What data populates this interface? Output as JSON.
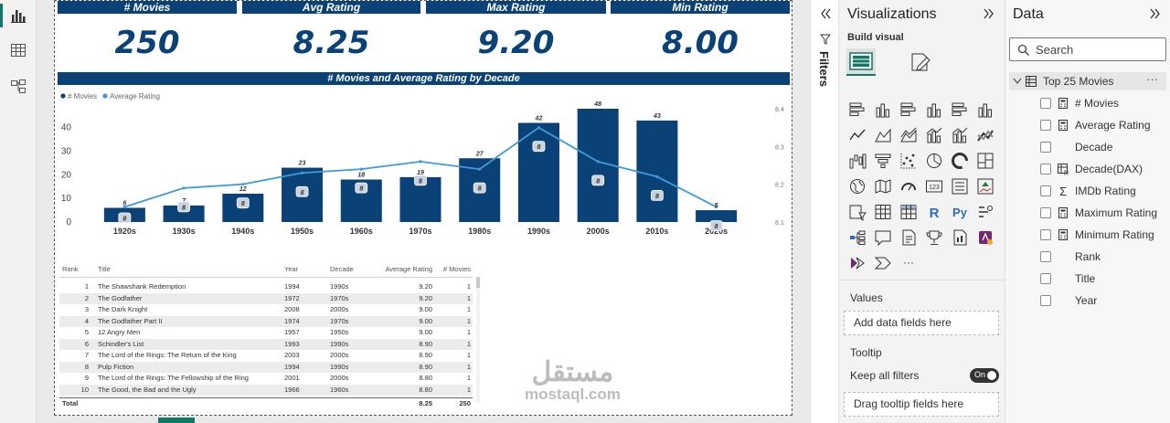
{
  "cards": [
    {
      "label": "# Movies",
      "value": "250"
    },
    {
      "label": "Avg Rating",
      "value": "8.25"
    },
    {
      "label": "Max Rating",
      "value": "9.20"
    },
    {
      "label": "Min Rating",
      "value": "8.00"
    }
  ],
  "chart": {
    "title": "# Movies and Average Rating by Decade",
    "legend_movies": "# Movies",
    "legend_rating": "Average Rating"
  },
  "chart_data": {
    "type": "bar",
    "title": "# Movies and Average Rating by Decade",
    "categories": [
      "1920s",
      "1930s",
      "1940s",
      "1950s",
      "1960s",
      "1970s",
      "1980s",
      "1990s",
      "2000s",
      "2010s",
      "2020s"
    ],
    "series": [
      {
        "name": "# Movies",
        "type": "bar",
        "values": [
          6,
          7,
          12,
          23,
          18,
          19,
          27,
          42,
          48,
          43,
          5
        ]
      },
      {
        "name": "Average Rating",
        "type": "line",
        "values": [
          8.14,
          8.19,
          8.2,
          8.23,
          8.24,
          8.26,
          8.24,
          8.35,
          8.26,
          8.22,
          8.14
        ]
      }
    ],
    "rating_labels": [
      "8",
      "8",
      "8",
      "8",
      "8",
      "8",
      "8",
      "8",
      "8",
      "8",
      "8"
    ],
    "left_axis": {
      "ticks": [
        "0",
        "10",
        "20",
        "30",
        "40"
      ],
      "range": [
        0,
        48
      ]
    },
    "right_axis": {
      "ticks": [
        "8.1",
        "8.2",
        "8.3",
        "8.4"
      ],
      "range": [
        8.1,
        8.4
      ]
    },
    "legend": "top-left"
  },
  "table": {
    "headers": {
      "rank": "Rank",
      "title": "Title",
      "year": "Year",
      "decade": "Decade",
      "avg": "Average Rating",
      "count": "# Movies"
    },
    "rows": [
      {
        "rank": "1",
        "title": "The Shawshank Redemption",
        "year": "1994",
        "decade": "1990s",
        "avg": "9.20",
        "count": "1"
      },
      {
        "rank": "2",
        "title": "The Godfather",
        "year": "1972",
        "decade": "1970s",
        "avg": "9.20",
        "count": "1"
      },
      {
        "rank": "3",
        "title": "The Dark Knight",
        "year": "2008",
        "decade": "2000s",
        "avg": "9.00",
        "count": "1"
      },
      {
        "rank": "4",
        "title": "The Godfather Part II",
        "year": "1974",
        "decade": "1970s",
        "avg": "9.00",
        "count": "1"
      },
      {
        "rank": "5",
        "title": "12 Angry Men",
        "year": "1957",
        "decade": "1950s",
        "avg": "9.00",
        "count": "1"
      },
      {
        "rank": "6",
        "title": "Schindler's List",
        "year": "1993",
        "decade": "1990s",
        "avg": "8.90",
        "count": "1"
      },
      {
        "rank": "7",
        "title": "The Lord of the Rings: The Return of the King",
        "year": "2003",
        "decade": "2000s",
        "avg": "8.90",
        "count": "1"
      },
      {
        "rank": "8",
        "title": "Pulp Fiction",
        "year": "1994",
        "decade": "1990s",
        "avg": "8.90",
        "count": "1"
      },
      {
        "rank": "9",
        "title": "The Lord of the Rings: The Fellowship of the Ring",
        "year": "2001",
        "decade": "2000s",
        "avg": "8.80",
        "count": "1"
      },
      {
        "rank": "10",
        "title": "The Good, the Bad and the Ugly",
        "year": "1966",
        "decade": "1960s",
        "avg": "8.80",
        "count": "1"
      }
    ],
    "total": {
      "label": "Total",
      "avg": "8.25",
      "count": "250"
    }
  },
  "watermark": {
    "arabic": "مستقل",
    "latin": "mostaql.com"
  },
  "filters_label": "Filters",
  "viz": {
    "title": "Visualizations",
    "build_visual": "Build visual",
    "values_label": "Values",
    "values_placeholder": "Add data fields here",
    "tooltip_label": "Tooltip",
    "keep_filters": "Keep all filters",
    "toggle": "On",
    "tooltip_placeholder": "Drag tooltip fields here",
    "more": "···"
  },
  "data_pane": {
    "title": "Data",
    "search_placeholder": "Search",
    "table_name": "Top 25 Movies",
    "more": "···",
    "fields": [
      {
        "label": "# Movies",
        "icon": "calculator-icon"
      },
      {
        "label": "Average Rating",
        "icon": "calculator-icon"
      },
      {
        "label": "Decade",
        "icon": ""
      },
      {
        "label": "Decade(DAX)",
        "icon": "calculated-column-icon"
      },
      {
        "label": "IMDb Rating",
        "icon": "sigma-icon"
      },
      {
        "label": "Maximum Rating",
        "icon": "calculator-icon"
      },
      {
        "label": "Minimum Rating",
        "icon": "calculator-icon"
      },
      {
        "label": "Rank",
        "icon": ""
      },
      {
        "label": "Title",
        "icon": ""
      },
      {
        "label": "Year",
        "icon": ""
      }
    ]
  },
  "colors": {
    "navy": "#0a4177",
    "line": "#3f9ad8",
    "accent": "#117865"
  }
}
